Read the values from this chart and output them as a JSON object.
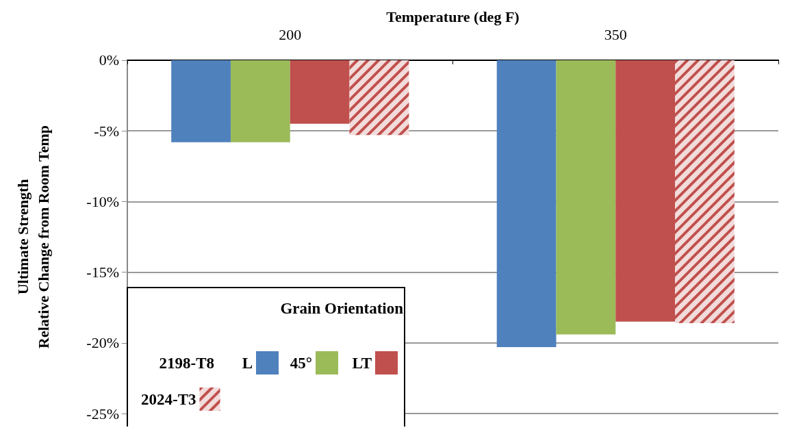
{
  "chart_data": {
    "type": "bar",
    "xlabel": "Temperature (deg F)",
    "ylabel": "Ultimate Strength\nRelative Change from Room Temp",
    "legend_title": "Grain Orientation",
    "categories": [
      "200",
      "350"
    ],
    "series": [
      {
        "name": "L",
        "color": "#4f81bd",
        "values": [
          -5.8,
          -20.3
        ]
      },
      {
        "name": "45°",
        "color": "#9bbb59",
        "values": [
          -5.8,
          -19.4
        ]
      },
      {
        "name": "LT",
        "color": "#c0504d",
        "values": [
          -4.5,
          -18.5
        ]
      },
      {
        "name": "2024-T3",
        "color": "#f2dcdb",
        "values": [
          -5.3,
          -18.6
        ]
      }
    ],
    "annotations": [
      "2198-T8"
    ],
    "ylim": [
      -25,
      0
    ],
    "yticks": [
      {
        "value": -25,
        "label": "-25%"
      },
      {
        "value": -20,
        "label": "-20%"
      },
      {
        "value": -15,
        "label": "-15%"
      },
      {
        "value": -10,
        "label": "-10%"
      },
      {
        "value": -5,
        "label": "-5%"
      },
      {
        "value": 0,
        "label": "0%"
      }
    ],
    "grid": "y",
    "legend": "bottom left"
  }
}
